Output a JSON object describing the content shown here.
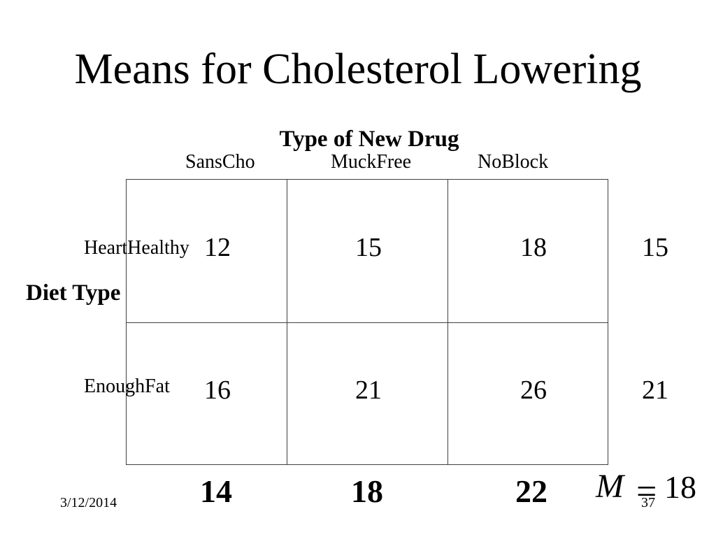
{
  "title": "Means for Cholesterol Lowering",
  "table": {
    "column_group_label": "Type of New Drug",
    "row_group_label": "Diet Type",
    "columns": [
      "SansCho",
      "MuckFree",
      "NoBlock"
    ],
    "rows": [
      {
        "label": "HeartHealthy",
        "cells": [
          12,
          15,
          18
        ],
        "row_mean": 15
      },
      {
        "label": "EnoughFat",
        "cells": [
          16,
          21,
          26
        ],
        "row_mean": 21
      }
    ],
    "column_means": [
      14,
      18,
      22
    ],
    "grand_mean": {
      "symbol": "M",
      "equals": "=",
      "value": 18
    }
  },
  "footer": {
    "date": "3/12/2014",
    "page": "37"
  }
}
